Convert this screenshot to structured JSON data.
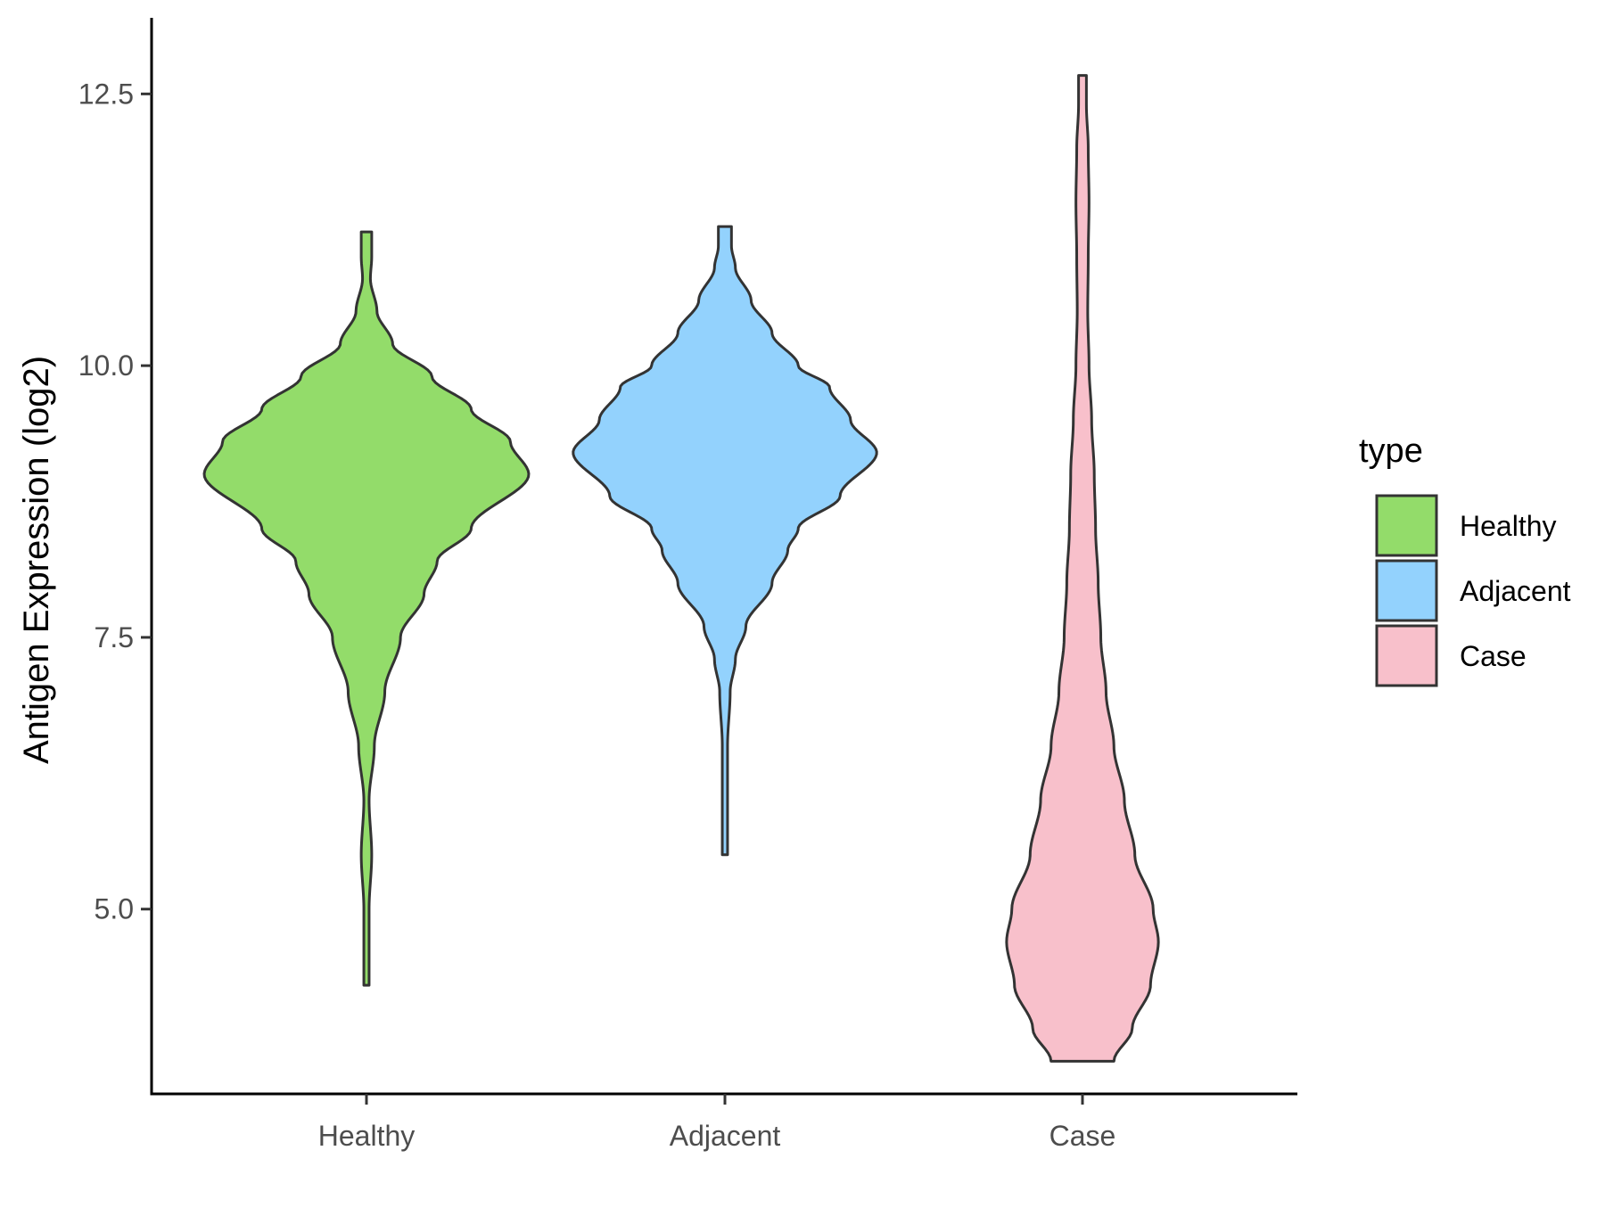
{
  "chart_data": {
    "type": "violin",
    "title": "",
    "xlabel": "",
    "ylabel": "Antigen Expression (log2)",
    "ylim": [
      3.3,
      13.2
    ],
    "yticks": [
      5.0,
      7.5,
      10.0,
      12.5
    ],
    "ytick_labels": [
      "5.0",
      "7.5",
      "10.0",
      "12.5"
    ],
    "categories": [
      "Healthy",
      "Adjacent",
      "Case"
    ],
    "grid": false,
    "legend": {
      "title": "type",
      "position": "right",
      "entries": [
        "Healthy",
        "Adjacent",
        "Case"
      ]
    },
    "colors": {
      "Healthy": "#93dc6a",
      "Adjacent": "#93d2fd",
      "Case": "#f8c0cb",
      "outline": "#333333",
      "axis": "#000000"
    },
    "series": [
      {
        "name": "Healthy",
        "min": 4.3,
        "max": 11.23,
        "density_profile": [
          [
            4.3,
            0.01
          ],
          [
            4.5,
            0.01
          ],
          [
            5.0,
            0.01
          ],
          [
            5.5,
            0.02
          ],
          [
            6.0,
            0.01
          ],
          [
            6.5,
            0.03
          ],
          [
            7.0,
            0.07
          ],
          [
            7.5,
            0.13
          ],
          [
            7.9,
            0.22
          ],
          [
            8.2,
            0.27
          ],
          [
            8.5,
            0.4
          ],
          [
            9.0,
            0.62
          ],
          [
            9.3,
            0.55
          ],
          [
            9.6,
            0.4
          ],
          [
            9.9,
            0.25
          ],
          [
            10.2,
            0.1
          ],
          [
            10.5,
            0.04
          ],
          [
            10.8,
            0.015
          ],
          [
            11.0,
            0.02
          ],
          [
            11.23,
            0.02
          ]
        ]
      },
      {
        "name": "Adjacent",
        "min": 5.5,
        "max": 11.28,
        "density_profile": [
          [
            5.5,
            0.01
          ],
          [
            5.8,
            0.01
          ],
          [
            6.0,
            0.01
          ],
          [
            6.5,
            0.01
          ],
          [
            7.0,
            0.02
          ],
          [
            7.3,
            0.04
          ],
          [
            7.6,
            0.08
          ],
          [
            8.0,
            0.18
          ],
          [
            8.3,
            0.24
          ],
          [
            8.5,
            0.28
          ],
          [
            8.8,
            0.44
          ],
          [
            9.2,
            0.58
          ],
          [
            9.5,
            0.48
          ],
          [
            9.8,
            0.4
          ],
          [
            10.0,
            0.28
          ],
          [
            10.3,
            0.18
          ],
          [
            10.6,
            0.1
          ],
          [
            10.9,
            0.04
          ],
          [
            11.1,
            0.025
          ],
          [
            11.28,
            0.025
          ]
        ]
      },
      {
        "name": "Case",
        "min": 3.6,
        "max": 12.67,
        "density_profile": [
          [
            3.6,
            0.12
          ],
          [
            3.9,
            0.19
          ],
          [
            4.3,
            0.26
          ],
          [
            4.7,
            0.29
          ],
          [
            5.0,
            0.27
          ],
          [
            5.5,
            0.2
          ],
          [
            6.0,
            0.16
          ],
          [
            6.5,
            0.12
          ],
          [
            7.0,
            0.09
          ],
          [
            7.5,
            0.07
          ],
          [
            8.0,
            0.06
          ],
          [
            8.5,
            0.05
          ],
          [
            9.0,
            0.045
          ],
          [
            9.5,
            0.035
          ],
          [
            10.0,
            0.025
          ],
          [
            10.5,
            0.02
          ],
          [
            11.0,
            0.022
          ],
          [
            11.5,
            0.025
          ],
          [
            12.0,
            0.022
          ],
          [
            12.4,
            0.015
          ],
          [
            12.67,
            0.015
          ]
        ]
      }
    ]
  }
}
